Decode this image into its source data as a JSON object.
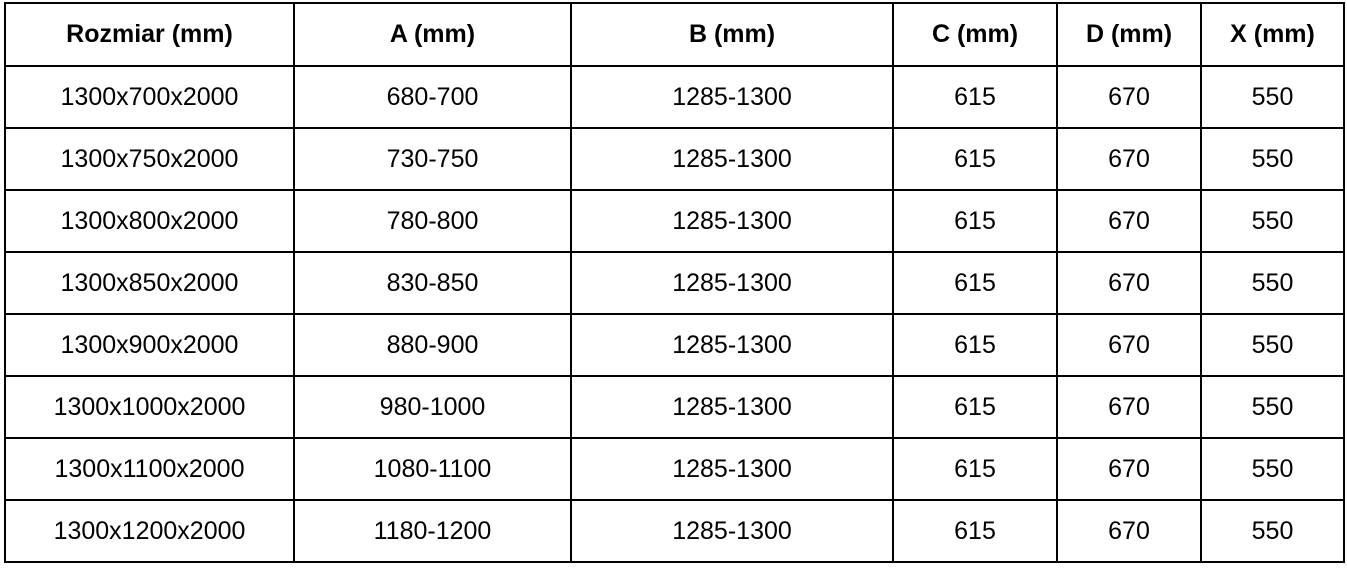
{
  "table": {
    "headers": [
      "Rozmiar (mm)",
      "A (mm)",
      "B (mm)",
      "C (mm)",
      "D (mm)",
      "X (mm)"
    ],
    "rows": [
      [
        "1300x700x2000",
        "680-700",
        "1285-1300",
        "615",
        "670",
        "550"
      ],
      [
        "1300x750x2000",
        "730-750",
        "1285-1300",
        "615",
        "670",
        "550"
      ],
      [
        "1300x800x2000",
        "780-800",
        "1285-1300",
        "615",
        "670",
        "550"
      ],
      [
        "1300x850x2000",
        "830-850",
        "1285-1300",
        "615",
        "670",
        "550"
      ],
      [
        "1300x900x2000",
        "880-900",
        "1285-1300",
        "615",
        "670",
        "550"
      ],
      [
        "1300x1000x2000",
        "980-1000",
        "1285-1300",
        "615",
        "670",
        "550"
      ],
      [
        "1300x1100x2000",
        "1080-1100",
        "1285-1300",
        "615",
        "670",
        "550"
      ],
      [
        "1300x1200x2000",
        "1180-1200",
        "1285-1300",
        "615",
        "670",
        "550"
      ]
    ]
  }
}
